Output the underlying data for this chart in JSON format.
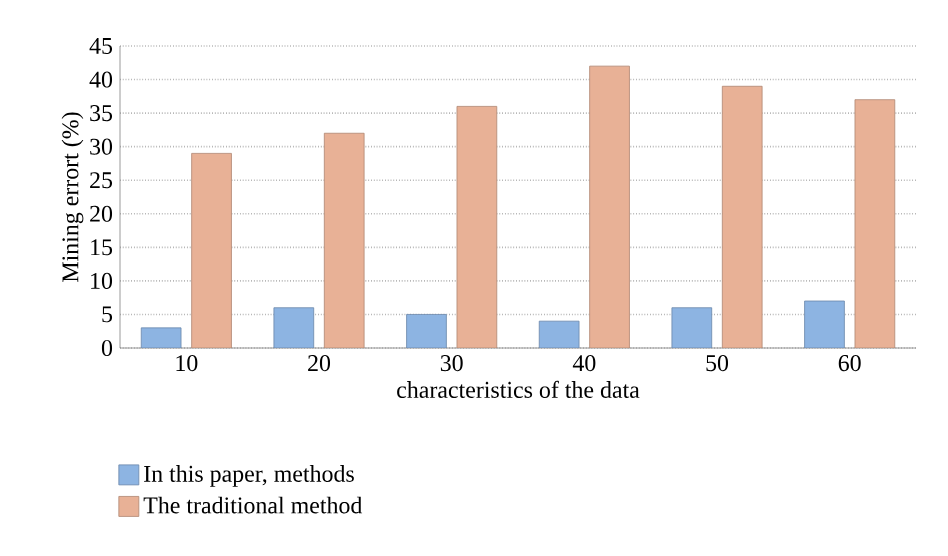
{
  "chart_data": {
    "type": "bar",
    "xlabel": "characteristics of the data",
    "ylabel": "Mining errort (%)",
    "categories": [
      "10",
      "20",
      "30",
      "40",
      "50",
      "60"
    ],
    "series": [
      {
        "name": "In this paper, methods",
        "color": "#8db4e2",
        "values": [
          3,
          6,
          5,
          4,
          6,
          7
        ]
      },
      {
        "name": "The traditional method",
        "color": "#e8b196",
        "values": [
          29,
          32,
          36,
          42,
          39,
          37
        ]
      }
    ],
    "ylim": [
      0,
      45
    ],
    "yticks": [
      0,
      5,
      10,
      15,
      20,
      25,
      30,
      35,
      40,
      45
    ],
    "grid": "y",
    "legend": "bottom left"
  }
}
